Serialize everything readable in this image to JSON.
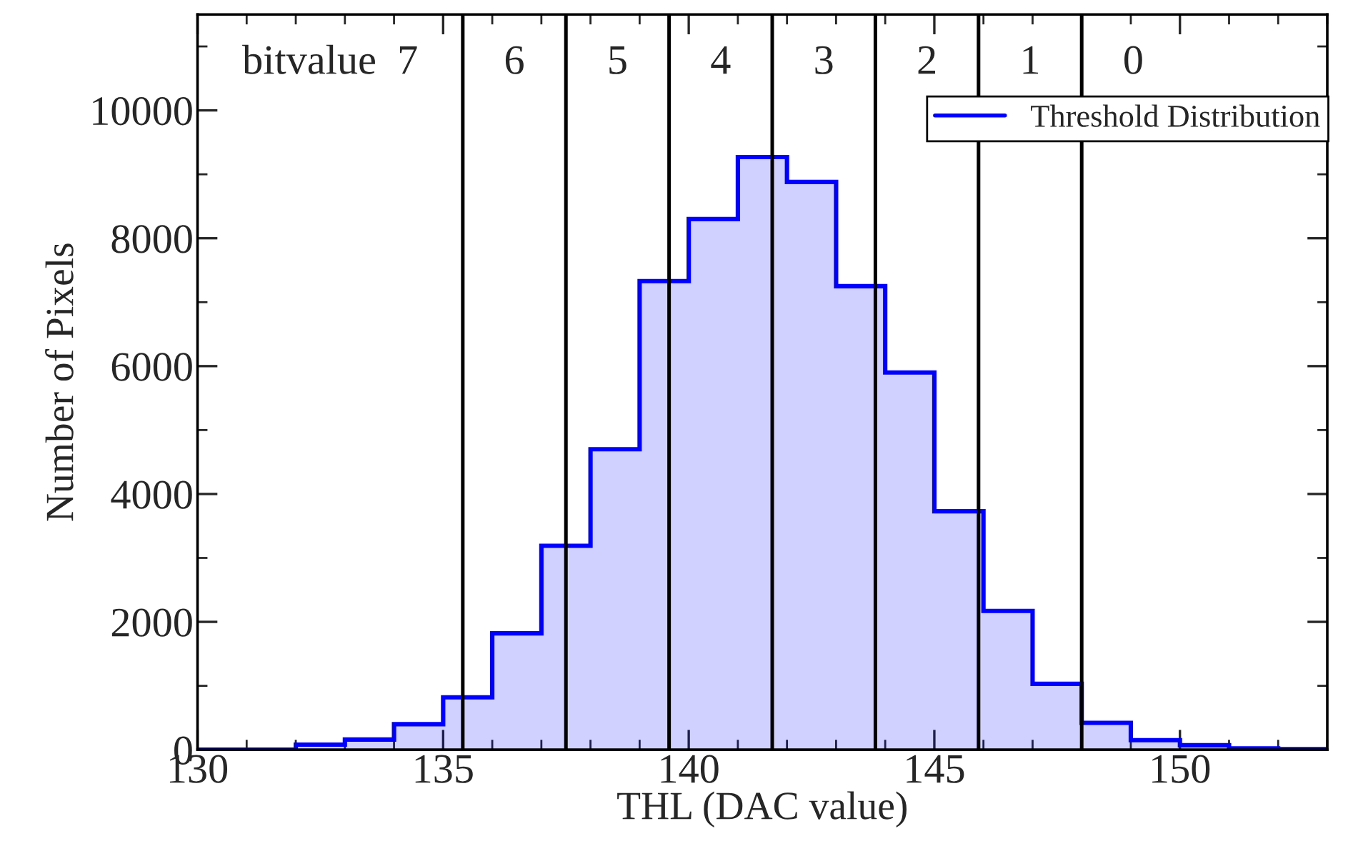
{
  "chart_data": {
    "type": "histogram",
    "xlabel": "THL (DAC value)",
    "ylabel": "Number of Pixels",
    "bins": [
      130,
      131,
      132,
      133,
      134,
      135,
      136,
      137,
      138,
      139,
      140,
      141,
      142,
      143,
      144,
      145,
      146,
      147,
      148,
      149,
      150,
      151,
      152,
      153
    ],
    "series": [
      {
        "name": "Threshold Distribution",
        "color": "#0000ff",
        "values": [
          0,
          0,
          80,
          160,
          400,
          820,
          1820,
          3190,
          4700,
          7330,
          8300,
          9270,
          8880,
          7250,
          5900,
          3730,
          2170,
          1030,
          420,
          150,
          70,
          20,
          10
        ]
      }
    ],
    "xlim": [
      130,
      153
    ],
    "xticks": [
      130,
      135,
      140,
      145,
      150
    ],
    "ylim": [
      0,
      11500
    ],
    "yticks": [
      0,
      2000,
      4000,
      6000,
      8000,
      10000
    ],
    "ref_lines": [
      {
        "axis": "x",
        "value": 135.4,
        "color": "#000000"
      },
      {
        "axis": "x",
        "value": 137.5,
        "color": "#000000"
      },
      {
        "axis": "x",
        "value": 139.6,
        "color": "#000000"
      },
      {
        "axis": "x",
        "value": 141.7,
        "color": "#000000"
      },
      {
        "axis": "x",
        "value": 143.8,
        "color": "#000000"
      },
      {
        "axis": "x",
        "value": 145.9,
        "color": "#000000"
      },
      {
        "axis": "x",
        "value": 148.0,
        "color": "#000000"
      }
    ],
    "annotations": [
      "bitvalue  7",
      "6",
      "5",
      "4",
      "3",
      "2",
      "1",
      "0"
    ],
    "legend": "top right",
    "grid": false
  }
}
